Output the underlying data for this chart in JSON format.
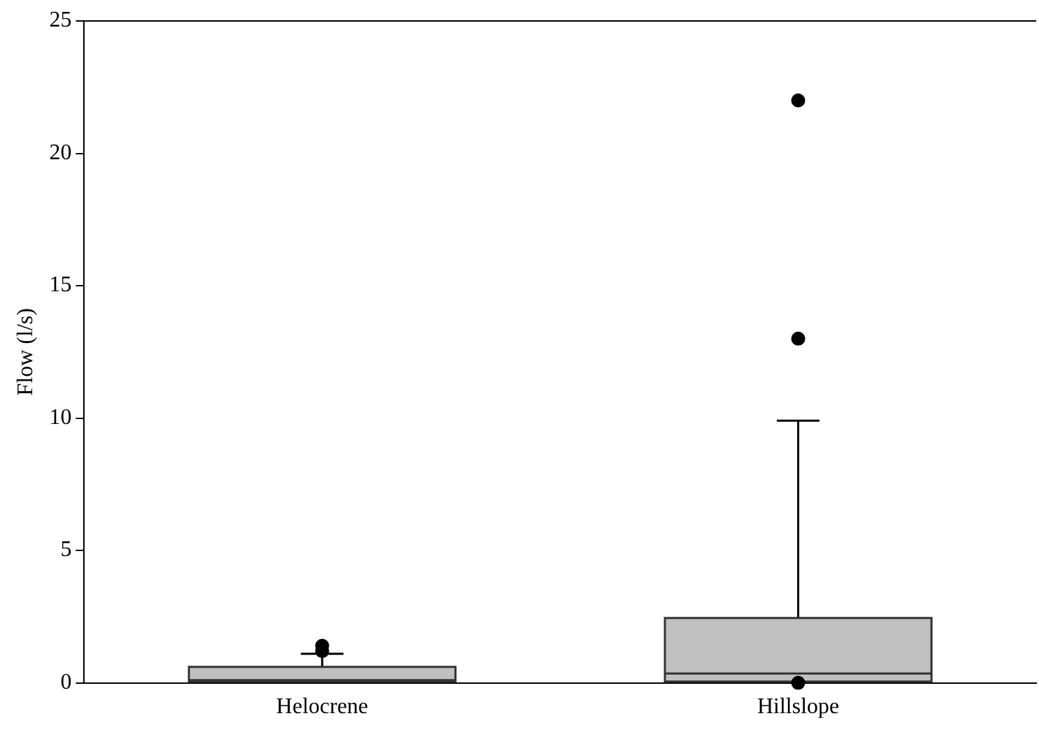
{
  "chart_data": {
    "type": "box",
    "ylabel": "Flow (l/s)",
    "categories": [
      "Helocrene",
      "Hillslope"
    ],
    "ylim": [
      0,
      25
    ],
    "yticks": [
      0,
      5,
      10,
      15,
      20,
      25
    ],
    "grid": false,
    "color": "#c0c0c0",
    "boxes": [
      {
        "q1": 0.05,
        "median": 0.1,
        "q3": 0.6,
        "high": 1.1,
        "outliers": [
          1.2,
          1.4
        ]
      },
      {
        "q1": 0.05,
        "median": 0.35,
        "q3": 2.45,
        "high": 9.9,
        "outliers": [
          0,
          13,
          22
        ]
      }
    ]
  }
}
